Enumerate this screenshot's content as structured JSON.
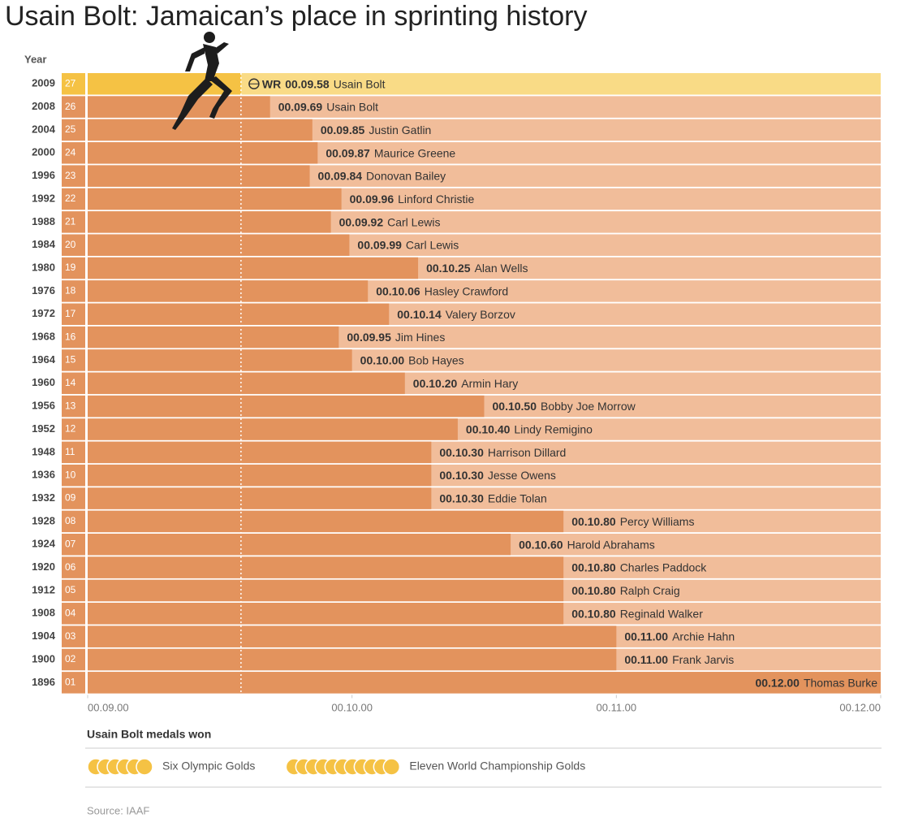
{
  "chart_data": {
    "type": "bar",
    "orientation": "horizontal",
    "title": "Usain Bolt: Jamaican’s place in sprinting history",
    "y_label": "Year",
    "categories": [
      "2009",
      "2008",
      "2004",
      "2000",
      "1996",
      "1992",
      "1988",
      "1984",
      "1980",
      "1976",
      "1972",
      "1968",
      "1964",
      "1960",
      "1956",
      "1952",
      "1948",
      "1936",
      "1932",
      "1928",
      "1924",
      "1920",
      "1912",
      "1908",
      "1904",
      "1900",
      "1896"
    ],
    "ranks": [
      "27",
      "26",
      "25",
      "24",
      "23",
      "22",
      "21",
      "20",
      "19",
      "18",
      "17",
      "16",
      "15",
      "14",
      "13",
      "12",
      "11",
      "10",
      "09",
      "08",
      "07",
      "06",
      "05",
      "04",
      "03",
      "02",
      "01"
    ],
    "names": [
      "Usain Bolt",
      "Usain Bolt",
      "Justin Gatlin",
      "Maurice Greene",
      "Donovan Bailey",
      "Linford Christie",
      "Carl Lewis",
      "Carl Lewis",
      "Alan Wells",
      "Hasley Crawford",
      "Valery Borzov",
      "Jim Hines",
      "Bob Hayes",
      "Armin Hary",
      "Bobby Joe Morrow",
      "Lindy Remigino",
      "Harrison Dillard",
      "Jesse Owens",
      "Eddie Tolan",
      "Percy Williams",
      "Harold Abrahams",
      "Charles Paddock",
      "Ralph Craig",
      "Reginald Walker",
      "Archie Hahn",
      "Frank Jarvis",
      "Thomas Burke"
    ],
    "values": [
      9.58,
      9.69,
      9.85,
      9.87,
      9.84,
      9.96,
      9.92,
      9.99,
      10.25,
      10.06,
      10.14,
      9.95,
      10.0,
      10.2,
      10.5,
      10.4,
      10.3,
      10.3,
      10.3,
      10.8,
      10.6,
      10.8,
      10.8,
      10.8,
      11.0,
      11.0,
      12.0
    ],
    "value_labels": [
      "00.09.58",
      "00.09.69",
      "00.09.85",
      "00.09.87",
      "00.09.84",
      "00.09.96",
      "00.09.92",
      "00.09.99",
      "00.10.25",
      "00.10.06",
      "00.10.14",
      "00.09.95",
      "00.10.00",
      "00.10.20",
      "00.10.50",
      "00.10.40",
      "00.10.30",
      "00.10.30",
      "00.10.30",
      "00.10.80",
      "00.10.60",
      "00.10.80",
      "00.10.80",
      "00.10.80",
      "00.11.00",
      "00.11.00",
      "00.12.00"
    ],
    "record_prefix": "WR",
    "color": "#e3935d",
    "track_color": "#f1bd9a",
    "record_color": "#f5c244",
    "record_track_color": "#f9db86",
    "xlim": [
      9,
      12
    ],
    "xticks": [
      {
        "value": 9,
        "label": "00.09.00"
      },
      {
        "value": 10,
        "label": "00.10.00"
      },
      {
        "value": 11,
        "label": "00.11.00"
      },
      {
        "value": 12,
        "label": "00.12.00"
      }
    ]
  },
  "medals": {
    "title": "Usain Bolt medals won",
    "color": "#f5c244",
    "items": [
      {
        "label": "Six Olympic Golds",
        "count": 6
      },
      {
        "label": "Eleven World Championship Golds",
        "count": 11
      }
    ]
  },
  "source": "Source: IAAF"
}
